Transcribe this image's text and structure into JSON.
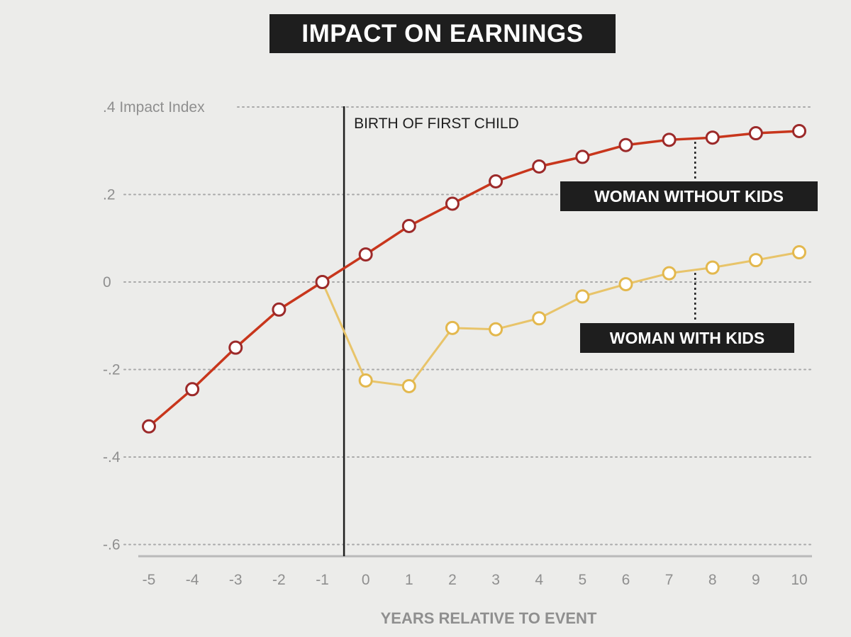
{
  "chart_data": {
    "type": "line",
    "title": "IMPACT ON EARNINGS",
    "ylabel": "Impact Index",
    "xlabel": "YEARS RELATIVE TO EVENT",
    "x": [
      -5,
      -4,
      -3,
      -2,
      -1,
      0,
      1,
      2,
      3,
      4,
      5,
      6,
      7,
      8,
      9,
      10
    ],
    "xtick_labels": [
      "-5",
      "-4",
      "-3",
      "-2",
      "-1",
      "0",
      "1",
      "2",
      "3",
      "4",
      "5",
      "6",
      "7",
      "8",
      "9",
      "10"
    ],
    "yticks": [
      {
        "value": 0.4,
        "label": ".4 Impact Index"
      },
      {
        "value": 0.2,
        "label": ".2"
      },
      {
        "value": 0,
        "label": "0"
      },
      {
        "value": -0.2,
        "label": "-.2"
      },
      {
        "value": -0.4,
        "label": "-.4"
      },
      {
        "value": -0.6,
        "label": "-.6"
      }
    ],
    "ylim": [
      -0.63,
      0.4
    ],
    "grid": true,
    "event_line": {
      "x": -0.5,
      "label": "BIRTH OF FIRST CHILD"
    },
    "series": [
      {
        "name": "WOMAN WITHOUT KIDS",
        "color": "#c8361c",
        "x": [
          -5,
          -4,
          -3,
          -2,
          -1,
          0,
          1,
          2,
          3,
          4,
          5,
          6,
          7,
          8,
          9,
          10
        ],
        "values": [
          -0.33,
          -0.245,
          -0.15,
          -0.063,
          0.0,
          0.063,
          0.128,
          0.179,
          0.23,
          0.264,
          0.286,
          0.313,
          0.325,
          0.33,
          0.34,
          0.345
        ],
        "label_anchor_x": 7.6
      },
      {
        "name": "WOMAN WITH KIDS",
        "color": "#e8c46a",
        "x": [
          -1,
          0,
          1,
          2,
          3,
          4,
          5,
          6,
          7,
          8,
          9,
          10
        ],
        "values": [
          0.0,
          -0.225,
          -0.238,
          -0.105,
          -0.108,
          -0.083,
          -0.033,
          -0.005,
          0.02,
          0.033,
          0.05,
          0.068
        ],
        "label_anchor_x": 7.6
      }
    ]
  }
}
